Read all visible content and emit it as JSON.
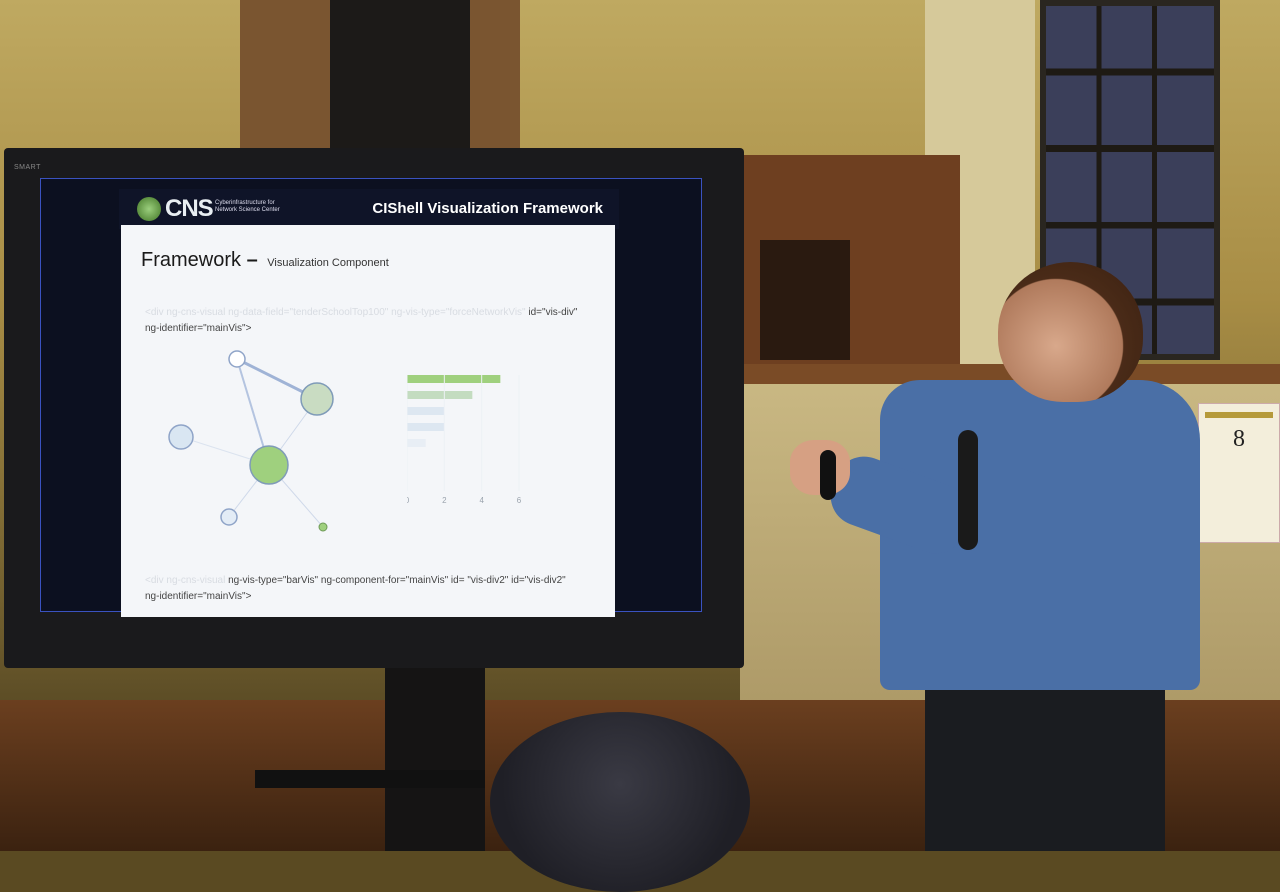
{
  "slide": {
    "header_logo": "CNS",
    "header_logo_sub": "Cyberinfrastructure for Network Science Center",
    "header_title": "CIShell Visualization Framework",
    "heading": "Framework",
    "heading_dash": "–",
    "heading_sub": "Visualization Component",
    "code_line_1_id": "id=\"vis-div\"",
    "code_line_2": "ng-identifier=\"mainVis\">",
    "code_line_3": "ng-vis-type=\"barVis\" ng-component-for=\"mainVis\" id= \"vis-div2\" id=\"vis-div2\"",
    "code_line_4": "ng-identifier=\"mainVis\">",
    "bar_axis_ticks": [
      "0",
      "2",
      "4",
      "6"
    ]
  },
  "chart_data": {
    "type": "bar",
    "orientation": "horizontal",
    "values": [
      5,
      3.5,
      2,
      2,
      1
    ],
    "xlim": [
      0,
      6
    ]
  },
  "sign": {
    "number": "8"
  },
  "colors": {
    "screen_border": "#3a52c0",
    "node_green": "#9fd07e",
    "node_blue": "#cfe0ef",
    "bar_green": "#9fd07e"
  }
}
